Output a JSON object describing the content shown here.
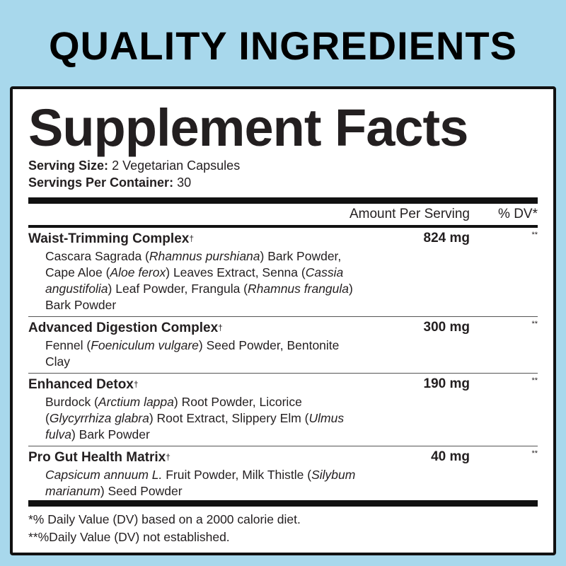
{
  "header": {
    "title": "QUALITY INGREDIENTS"
  },
  "label": {
    "title": "Supplement Facts",
    "serving_size": {
      "label": "Serving Size:",
      "value": "2 Vegetarian Capsules"
    },
    "servings_per_container": {
      "label": "Servings Per Container:",
      "value": "30"
    },
    "columns": {
      "amount": "Amount Per Serving",
      "dv": "% DV*"
    },
    "ingredients": [
      {
        "name": "Waist-Trimming Complex",
        "mark": "†",
        "amount": "824 mg",
        "dv": "**",
        "description": [
          {
            "text": "Cascara Sagrada (",
            "italic": false
          },
          {
            "text": "Rhamnus purshiana",
            "italic": true
          },
          {
            "text": ") Bark Powder, Cape Aloe (",
            "italic": false
          },
          {
            "text": "Aloe ferox",
            "italic": true
          },
          {
            "text": ") Leaves Extract, Senna (",
            "italic": false
          },
          {
            "text": "Cassia angustifolia",
            "italic": true
          },
          {
            "text": ") Leaf Powder, Frangula (",
            "italic": false
          },
          {
            "text": "Rhamnus frangula",
            "italic": true
          },
          {
            "text": ") Bark Powder",
            "italic": false
          }
        ]
      },
      {
        "name": "Advanced Digestion Complex",
        "mark": "†",
        "amount": "300 mg",
        "dv": "**",
        "description": [
          {
            "text": "Fennel (",
            "italic": false
          },
          {
            "text": "Foeniculum vulgare",
            "italic": true
          },
          {
            "text": ") Seed Powder, Bentonite Clay",
            "italic": false
          }
        ]
      },
      {
        "name": "Enhanced Detox",
        "mark": "†",
        "amount": "190 mg",
        "dv": "**",
        "description": [
          {
            "text": "Burdock (",
            "italic": false
          },
          {
            "text": "Arctium lappa",
            "italic": true
          },
          {
            "text": ") Root Powder, Licorice (",
            "italic": false
          },
          {
            "text": "Glycyrrhiza glabra",
            "italic": true
          },
          {
            "text": ") Root Extract, Slippery Elm (",
            "italic": false
          },
          {
            "text": "Ulmus fulva",
            "italic": true
          },
          {
            "text": ") Bark Powder",
            "italic": false
          }
        ]
      },
      {
        "name": "Pro Gut Health Matrix",
        "mark": "†",
        "amount": "40 mg",
        "dv": "**",
        "description": [
          {
            "text": "Capsicum annuum L.",
            "italic": true
          },
          {
            "text": " Fruit Powder, Milk Thistle (",
            "italic": false
          },
          {
            "text": "Silybum marianum",
            "italic": true
          },
          {
            "text": ") Seed Powder",
            "italic": false
          }
        ]
      }
    ],
    "footnotes": [
      "*% Daily Value (DV) based on a 2000 calorie diet.",
      "**%Daily Value (DV) not established."
    ]
  }
}
